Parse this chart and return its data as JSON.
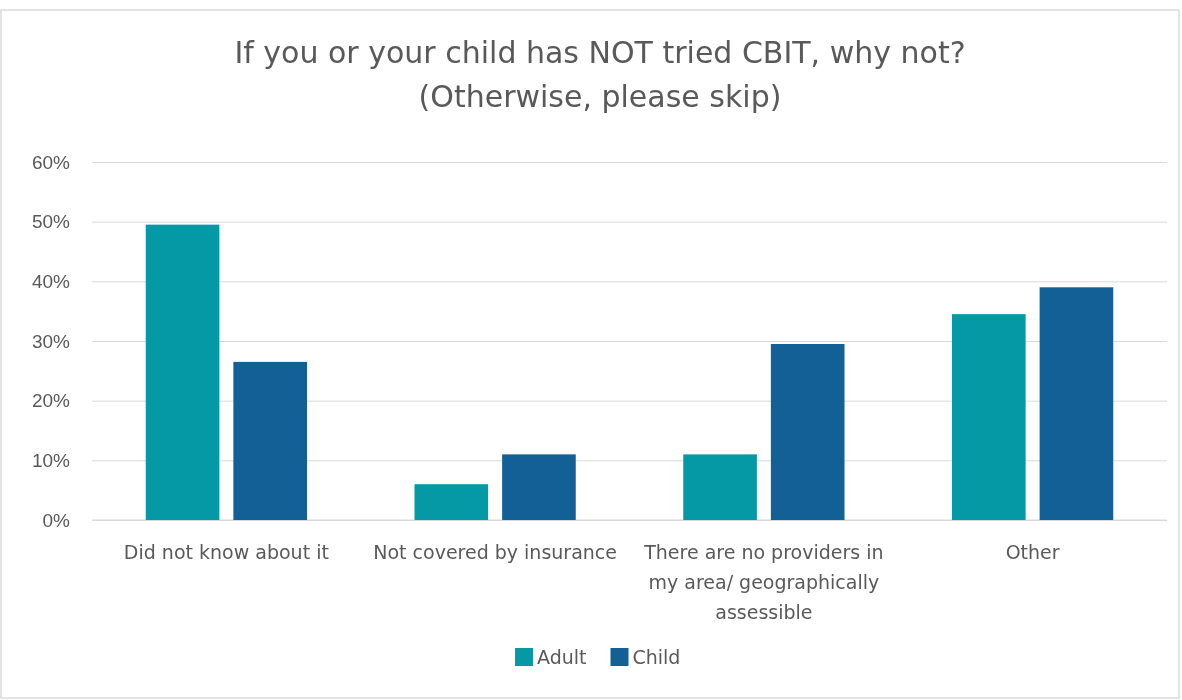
{
  "chart_data": {
    "type": "bar",
    "title": "If you or your child has NOT tried CBIT, why not?\n(Otherwise, please skip)",
    "categories": [
      "Did not know about it",
      "Not covered by insurance",
      "There are no providers in my area/ geographically assessible",
      "Other"
    ],
    "series": [
      {
        "name": "Adult",
        "color": "#0599a5",
        "values": [
          49.5,
          6,
          11,
          34.5
        ]
      },
      {
        "name": "Child",
        "color": "#136096",
        "values": [
          26.5,
          11,
          29.5,
          39
        ]
      }
    ],
    "ylim": [
      0,
      60
    ],
    "yticks": [
      {
        "value": 0,
        "label": "0%"
      },
      {
        "value": 10,
        "label": "10%"
      },
      {
        "value": 20,
        "label": "20%"
      },
      {
        "value": 30,
        "label": "30%"
      },
      {
        "value": 40,
        "label": "40%"
      },
      {
        "value": 50,
        "label": "50%"
      },
      {
        "value": 60,
        "label": "60%"
      }
    ],
    "grid": "y",
    "legend": "bottom"
  }
}
